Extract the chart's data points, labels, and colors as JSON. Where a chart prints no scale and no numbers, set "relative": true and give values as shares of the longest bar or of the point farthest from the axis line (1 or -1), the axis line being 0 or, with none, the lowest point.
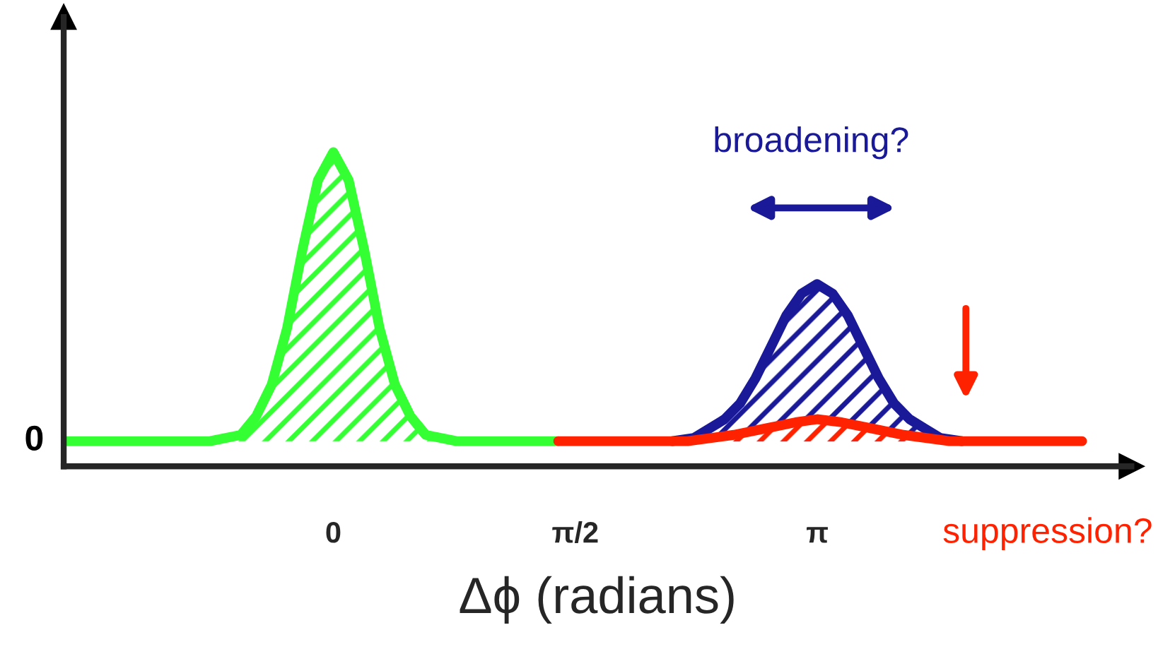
{
  "chart_data": {
    "type": "area",
    "relative": true,
    "xlabel": "Δϕ (radians)",
    "xlim": [
      -1.75,
      5.18
    ],
    "xticks": [
      {
        "value": 0,
        "label": "0"
      },
      {
        "value": 1.5708,
        "label": "π/2"
      },
      {
        "value": 3.1416,
        "label": "π"
      }
    ],
    "series": [
      {
        "color": "#33ff33",
        "x": [
          -1.73,
          -0.8,
          -0.6,
          -0.5,
          -0.4,
          -0.3,
          -0.2,
          -0.1,
          0,
          0.1,
          0.2,
          0.3,
          0.4,
          0.5,
          0.6,
          0.8,
          1.46
        ],
        "values": [
          0.08,
          0.08,
          0.1,
          0.16,
          0.26,
          0.44,
          0.69,
          0.91,
          1,
          0.91,
          0.69,
          0.44,
          0.26,
          0.16,
          0.1,
          0.08,
          0.08
        ]
      },
      {
        "color": "#1a1a99",
        "x": [
          2.2,
          2.34,
          2.44,
          2.54,
          2.64,
          2.74,
          2.84,
          2.94,
          3.04,
          3.14,
          3.24,
          3.34,
          3.44,
          3.54,
          3.64,
          3.74,
          3.84,
          3.94,
          4.08
        ],
        "values": [
          0.08,
          0.09,
          0.12,
          0.15,
          0.2,
          0.28,
          0.38,
          0.48,
          0.55,
          0.58,
          0.55,
          0.48,
          0.38,
          0.28,
          0.2,
          0.15,
          0.12,
          0.09,
          0.08
        ]
      },
      {
        "color": "#ff2200",
        "x": [
          1.46,
          2.3,
          2.6,
          2.8,
          3.0,
          3.14,
          3.3,
          3.5,
          3.7,
          4.0,
          4.86
        ],
        "values": [
          0.08,
          0.08,
          0.1,
          0.12,
          0.14,
          0.15,
          0.14,
          0.12,
          0.1,
          0.08,
          0.08
        ]
      }
    ],
    "annotations": [
      {
        "text": "0",
        "x": -1.75,
        "y": 0.08
      },
      "broadening?",
      "suppression?"
    ],
    "grid": false,
    "legend": false
  }
}
